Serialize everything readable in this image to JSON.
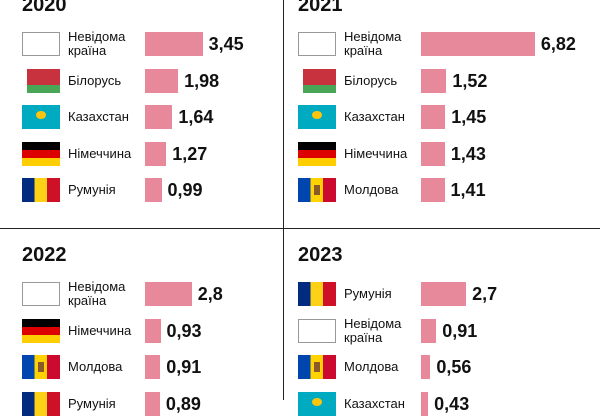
{
  "chart_data": [
    {
      "type": "bar",
      "title": "2020",
      "color": "#e8899b",
      "categories": [
        "Невідома країна",
        "Білорусь",
        "Казахстан",
        "Німеччина",
        "Румунія"
      ],
      "values": [
        3.45,
        1.98,
        1.64,
        1.27,
        0.99
      ],
      "value_labels": [
        "3,45",
        "1,98",
        "1,64",
        "1,27",
        "0,99"
      ]
    },
    {
      "type": "bar",
      "title": "2021",
      "color": "#e8899b",
      "categories": [
        "Невідома країна",
        "Білорусь",
        "Казахстан",
        "Німеччина",
        "Молдова"
      ],
      "values": [
        6.82,
        1.52,
        1.45,
        1.43,
        1.41
      ],
      "value_labels": [
        "6,82",
        "1,52",
        "1,45",
        "1,43",
        "1,41"
      ]
    },
    {
      "type": "bar",
      "title": "2022",
      "color": "#e8899b",
      "categories": [
        "Невідома країна",
        "Німеччина",
        "Молдова",
        "Румунія"
      ],
      "values": [
        2.8,
        0.93,
        0.91,
        0.89
      ],
      "value_labels": [
        "2,8",
        "0,93",
        "0,91",
        "0,89"
      ]
    },
    {
      "type": "bar",
      "title": "2023",
      "color": "#e8899b",
      "categories": [
        "Румунія",
        "Невідома країна",
        "Молдова",
        "Казахстан"
      ],
      "values": [
        2.7,
        0.91,
        0.56,
        0.43
      ],
      "value_labels": [
        "2,7",
        "0,91",
        "0,56",
        "0,43"
      ]
    }
  ]
}
